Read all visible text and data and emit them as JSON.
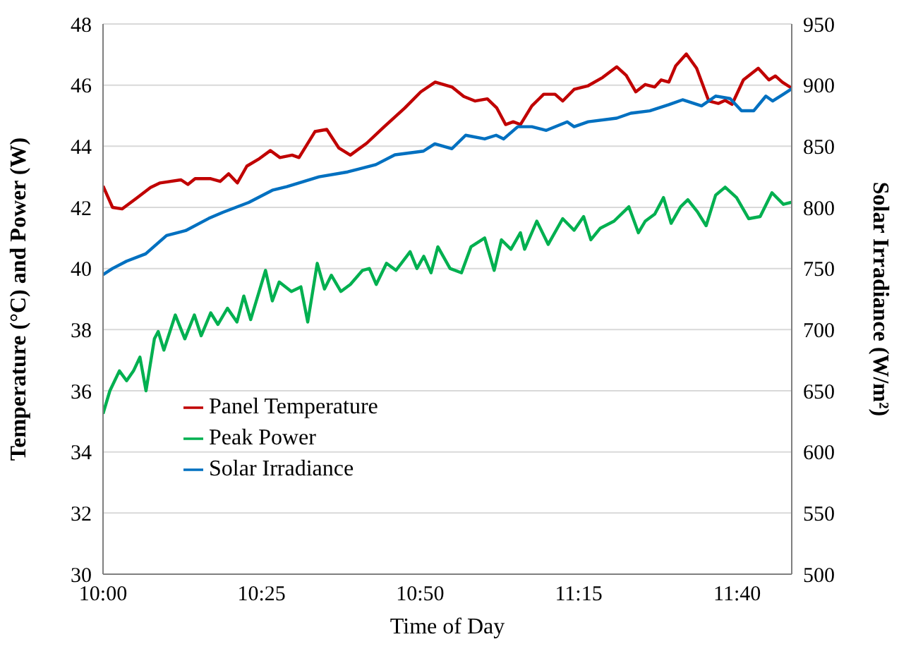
{
  "chart_data": {
    "type": "line",
    "xlabel": "Time of Day",
    "ylabel": "Temperature (°C) and Power (W)",
    "y2label": "Solar Irradiance (W/m²)",
    "xlim": [
      10,
      11.81
    ],
    "xticks": [
      {
        "value": 10,
        "label": "10:00"
      },
      {
        "value": 10.4167,
        "label": "10:25"
      },
      {
        "value": 10.8333,
        "label": "10:50"
      },
      {
        "value": 11.25,
        "label": "11:15"
      },
      {
        "value": 11.6667,
        "label": "11:40"
      }
    ],
    "ylim": [
      30,
      48
    ],
    "yticks": [
      30,
      32,
      34,
      36,
      38,
      40,
      42,
      44,
      46,
      48
    ],
    "y2lim": [
      500,
      950
    ],
    "y2ticks": [
      500,
      550,
      600,
      650,
      700,
      750,
      800,
      850,
      900,
      950
    ],
    "grid": "y",
    "legend": "bottom left",
    "series": [
      {
        "name": "Panel Temperature",
        "color": "#c00000",
        "x": [
          10.0,
          10.025,
          10.05,
          10.088,
          10.125,
          10.15,
          10.205,
          10.223,
          10.242,
          10.283,
          10.308,
          10.33,
          10.353,
          10.378,
          10.408,
          10.44,
          10.465,
          10.497,
          10.515,
          10.557,
          10.588,
          10.62,
          10.65,
          10.693,
          10.738,
          10.793,
          10.835,
          10.873,
          10.917,
          10.948,
          10.978,
          11.01,
          11.035,
          11.058,
          11.078,
          11.097,
          11.127,
          11.158,
          11.188,
          11.208,
          11.238,
          11.275,
          11.313,
          11.35,
          11.375,
          11.4,
          11.425,
          11.45,
          11.467,
          11.487,
          11.505,
          11.533,
          11.56,
          11.592,
          11.617,
          11.635,
          11.653,
          11.683,
          11.722,
          11.75,
          11.767,
          11.785,
          11.81
        ],
        "values": [
          42.7,
          42.0,
          41.95,
          42.3,
          42.65,
          42.8,
          42.9,
          42.75,
          42.94,
          42.94,
          42.85,
          43.1,
          42.8,
          43.35,
          43.57,
          43.86,
          43.63,
          43.71,
          43.63,
          44.48,
          44.55,
          43.94,
          43.71,
          44.1,
          44.63,
          45.25,
          45.78,
          46.1,
          45.94,
          45.63,
          45.48,
          45.55,
          45.25,
          44.71,
          44.8,
          44.71,
          45.32,
          45.7,
          45.7,
          45.48,
          45.86,
          45.98,
          46.25,
          46.6,
          46.32,
          45.78,
          46.02,
          45.94,
          46.17,
          46.1,
          46.63,
          47.02,
          46.55,
          45.48,
          45.4,
          45.5,
          45.37,
          46.17,
          46.55,
          46.17,
          46.3,
          46.1,
          45.9
        ]
      },
      {
        "name": "Peak Power",
        "color": "#00b050",
        "x": [
          10.0,
          10.018,
          10.043,
          10.062,
          10.08,
          10.097,
          10.113,
          10.135,
          10.145,
          10.16,
          10.19,
          10.215,
          10.24,
          10.258,
          10.283,
          10.302,
          10.327,
          10.352,
          10.37,
          10.388,
          10.427,
          10.445,
          10.463,
          10.495,
          10.52,
          10.538,
          10.563,
          10.582,
          10.6,
          10.625,
          10.65,
          10.682,
          10.7,
          10.718,
          10.745,
          10.77,
          10.807,
          10.825,
          10.843,
          10.862,
          10.88,
          10.912,
          10.942,
          10.967,
          11.003,
          11.028,
          11.047,
          11.072,
          11.097,
          11.108,
          11.14,
          11.17,
          11.208,
          11.238,
          11.263,
          11.282,
          11.307,
          11.343,
          11.382,
          11.407,
          11.425,
          11.45,
          11.473,
          11.493,
          11.518,
          11.537,
          11.562,
          11.585,
          11.61,
          11.635,
          11.665,
          11.697,
          11.727,
          11.758,
          11.788,
          11.81
        ],
        "values": [
          35.25,
          36.0,
          36.65,
          36.33,
          36.65,
          37.1,
          36.0,
          37.7,
          37.94,
          37.33,
          38.48,
          37.7,
          38.48,
          37.8,
          38.55,
          38.17,
          38.7,
          38.25,
          39.1,
          38.33,
          39.94,
          38.94,
          39.56,
          39.25,
          39.4,
          38.25,
          40.17,
          39.33,
          39.78,
          39.25,
          39.48,
          39.94,
          40.0,
          39.48,
          40.17,
          39.94,
          40.55,
          40.0,
          40.4,
          39.86,
          40.71,
          40.0,
          39.86,
          40.71,
          41.0,
          39.94,
          40.94,
          40.63,
          41.17,
          40.63,
          41.55,
          40.79,
          41.63,
          41.25,
          41.7,
          40.94,
          41.32,
          41.55,
          42.02,
          41.17,
          41.55,
          41.78,
          42.32,
          41.48,
          42.02,
          42.25,
          41.86,
          41.4,
          42.4,
          42.66,
          42.32,
          41.63,
          41.7,
          42.48,
          42.1,
          42.17
        ]
      },
      {
        "name": "Solar Irradiance",
        "color": "#0070c0",
        "axis": "y2",
        "x": [
          10.0,
          10.025,
          10.062,
          10.112,
          10.167,
          10.217,
          10.278,
          10.315,
          10.383,
          10.445,
          10.483,
          10.568,
          10.643,
          10.717,
          10.767,
          10.842,
          10.872,
          10.917,
          10.953,
          11.003,
          11.033,
          11.053,
          11.09,
          11.127,
          11.165,
          11.22,
          11.238,
          11.275,
          11.35,
          11.387,
          11.437,
          11.487,
          11.523,
          11.573,
          11.61,
          11.648,
          11.678,
          11.71,
          11.742,
          11.76,
          11.785,
          11.81
        ],
        "values": [
          745,
          750,
          756,
          762,
          777,
          781,
          791,
          796,
          804,
          814,
          817,
          825,
          829,
          835,
          843,
          846,
          852,
          848,
          859,
          856,
          859,
          856,
          866,
          866,
          863,
          870,
          866,
          870,
          873,
          877,
          879,
          884,
          888,
          883,
          891,
          889,
          879,
          879,
          891,
          887,
          892,
          897
        ]
      }
    ]
  }
}
